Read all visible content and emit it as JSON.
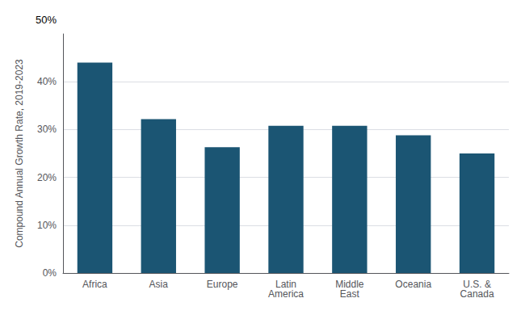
{
  "chart_data": {
    "type": "bar",
    "categories": [
      "Africa",
      "Asia",
      "Europe",
      "Latin\nAmerica",
      "Middle\nEast",
      "Oceania",
      "U.S. &\nCanada"
    ],
    "values": [
      0.44,
      0.322,
      0.263,
      0.308,
      0.308,
      0.288,
      0.25
    ],
    "color": "#1b5573",
    "ylabel": "Compound Annual Growth Rate, 2019-2023",
    "ylim": [
      0,
      0.5
    ],
    "yticks": [
      {
        "value": 0.0,
        "label": "0%"
      },
      {
        "value": 0.1,
        "label": "10%"
      },
      {
        "value": 0.2,
        "label": "20%"
      },
      {
        "value": 0.3,
        "label": "30%"
      },
      {
        "value": 0.4,
        "label": "40%"
      }
    ],
    "annotations": [
      "50%"
    ],
    "grid": true
  }
}
